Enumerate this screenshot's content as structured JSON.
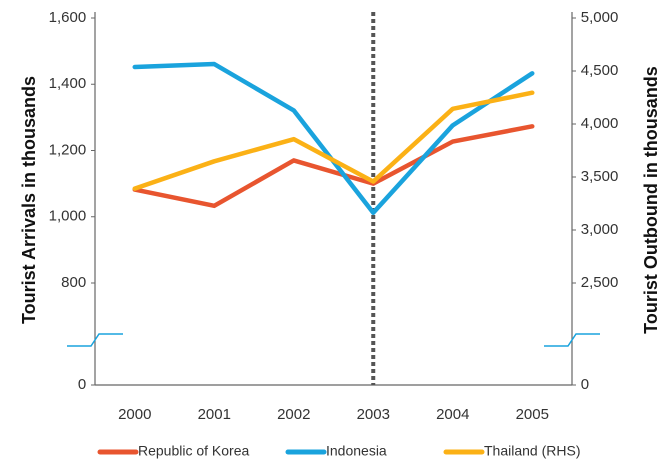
{
  "chart_data": {
    "type": "line",
    "categories": [
      "2000",
      "2001",
      "2002",
      "2003",
      "2004",
      "2005"
    ],
    "ylabel": "Tourist Arrivals in thousands",
    "y2label": "Tourist Outbound in thousands",
    "ylim": [
      0,
      1600
    ],
    "yticks": [
      0,
      800,
      {
        "value": 1000,
        "label": "1,000"
      },
      {
        "value": 1200,
        "label": "1,200"
      },
      {
        "value": 1400,
        "label": "1,400"
      },
      {
        "value": 1600,
        "label": "1,600"
      }
    ],
    "y2lim": [
      0,
      5000
    ],
    "y2ticks": [
      0,
      {
        "value": 2500,
        "label": "2,500"
      },
      {
        "value": 3000,
        "label": "3,000"
      },
      {
        "value": 3500,
        "label": "3,500"
      },
      {
        "value": 4000,
        "label": "4,000"
      },
      {
        "value": 4500,
        "label": "4,500"
      },
      {
        "value": 5000,
        "label": "5,000"
      }
    ],
    "axis_break": true,
    "vline": "2003",
    "legend": "bottom",
    "series": [
      {
        "name": "Republic of Korea",
        "color": "#e8552f",
        "values": [
          1082,
          1033,
          1170,
          1100,
          1227,
          1273
        ]
      },
      {
        "name": "Indonesia",
        "color": "#1aa3dd",
        "values": [
          1452,
          1461,
          1321,
          1012,
          1276,
          1433
        ]
      },
      {
        "name": "Thailand (RHS)",
        "color": "#fbb116",
        "axis": "y2",
        "values": [
          3390,
          3648,
          3857,
          3457,
          4143,
          4295
        ]
      }
    ]
  }
}
